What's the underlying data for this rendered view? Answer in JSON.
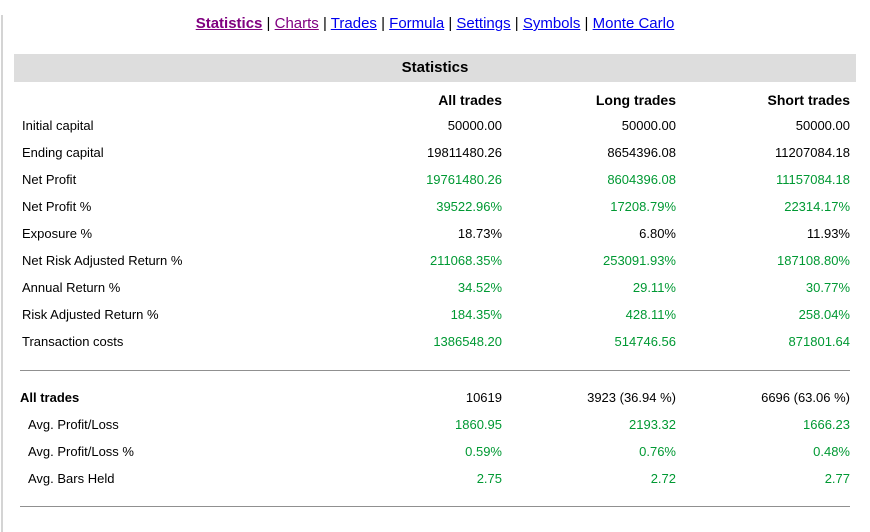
{
  "colors": {
    "positive": "#009933",
    "neutral": "#000000",
    "title_bar_bg": "#dddddd",
    "divider": "#909090",
    "link_blue": "#0000EE",
    "link_visited": "#800080"
  },
  "nav": {
    "separator": "|",
    "items": [
      {
        "label": "Statistics",
        "color": "#800080",
        "bold": true,
        "active": true
      },
      {
        "label": "Charts",
        "color": "#800080"
      },
      {
        "label": "Trades",
        "color": "#0000EE"
      },
      {
        "label": "Formula",
        "color": "#0000EE"
      },
      {
        "label": "Settings",
        "color": "#0000EE"
      },
      {
        "label": "Symbols",
        "color": "#0000EE"
      },
      {
        "label": "Monte Carlo",
        "color": "#0000EE"
      }
    ]
  },
  "report": {
    "title": "Statistics",
    "columns": [
      "All trades",
      "Long trades",
      "Short trades"
    ],
    "sections": [
      {
        "rows": [
          {
            "label": "Initial capital",
            "values": [
              "50000.00",
              "50000.00",
              "50000.00"
            ],
            "color": "black"
          },
          {
            "label": "Ending capital",
            "values": [
              "19811480.26",
              "8654396.08",
              "11207084.18"
            ],
            "color": "black"
          },
          {
            "label": "Net Profit",
            "values": [
              "19761480.26",
              "8604396.08",
              "11157084.18"
            ],
            "color": "green"
          },
          {
            "label": "Net Profit %",
            "values": [
              "39522.96%",
              "17208.79%",
              "22314.17%"
            ],
            "color": "green"
          },
          {
            "label": "Exposure %",
            "values": [
              "18.73%",
              "6.80%",
              "11.93%"
            ],
            "color": "black"
          },
          {
            "label": "Net Risk Adjusted Return %",
            "values": [
              "211068.35%",
              "253091.93%",
              "187108.80%"
            ],
            "color": "green"
          },
          {
            "label": "Annual Return %",
            "values": [
              "34.52%",
              "29.11%",
              "30.77%"
            ],
            "color": "green"
          },
          {
            "label": "Risk Adjusted Return %",
            "values": [
              "184.35%",
              "428.11%",
              "258.04%"
            ],
            "color": "green"
          },
          {
            "label": "Transaction costs",
            "values": [
              "1386548.20",
              "514746.56",
              "871801.64"
            ],
            "color": "green"
          }
        ]
      },
      {
        "rows": [
          {
            "label": "All trades",
            "bold": true,
            "values": [
              "10619",
              "3923 (36.94 %)",
              "6696 (63.06 %)"
            ],
            "color": "black"
          },
          {
            "label": "Avg. Profit/Loss",
            "indent": true,
            "values": [
              "1860.95",
              "2193.32",
              "1666.23"
            ],
            "color": "green"
          },
          {
            "label": "Avg. Profit/Loss %",
            "indent": true,
            "values": [
              "0.59%",
              "0.76%",
              "0.48%"
            ],
            "color": "green"
          },
          {
            "label": "Avg. Bars Held",
            "indent": true,
            "values": [
              "2.75",
              "2.72",
              "2.77"
            ],
            "color": "green"
          }
        ]
      }
    ]
  }
}
